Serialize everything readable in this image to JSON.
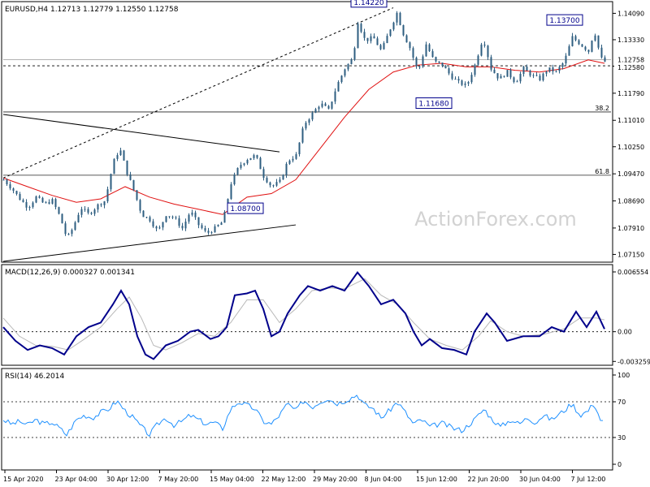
{
  "chart_data": {
    "type": "candlestick",
    "colors": {
      "background": "#ffffff",
      "border": "#000000",
      "candle": "#2e5e80",
      "moving_average": "#e01010",
      "macd_line": "#00008b",
      "macd_signal": "#b8b8b8",
      "rsi_line": "#1e90ff",
      "watermark": "#d2d2d2"
    },
    "watermark": "ActionForex.com",
    "time_labels": [
      "15 Apr 2020",
      "23 Apr 04:00",
      "30 Apr 12:00",
      "7 May 20:00",
      "15 May 04:00",
      "22 May 12:00",
      "29 May 20:00",
      "8 Jun 04:00",
      "15 Jun 12:00",
      "22 Jun 20:00",
      "30 Jun 04:00",
      "7 Jul 12:00"
    ],
    "price_panel": {
      "header": "EURUSD,H4  1.12713 1.12779 1.12550 1.12758",
      "ylim": [
        1.0695,
        1.1438
      ],
      "ticks": [
        "1.14090",
        "1.13330",
        "1.12570",
        "1.11790",
        "1.11010",
        "1.10250",
        "1.09470",
        "1.08690",
        "1.07910",
        "1.07150"
      ],
      "current_price": {
        "label": "1.12758",
        "value": 1.12758
      },
      "dashed_level": {
        "label": "1.12580",
        "value": 1.1258
      },
      "fib_levels": [
        {
          "label": "38.2",
          "value": 1.1125
        },
        {
          "label": "61.8",
          "value": 1.0943
        }
      ],
      "annotations": [
        {
          "label": "1.14220",
          "value": 1.1422
        },
        {
          "label": "1.13700",
          "value": 1.137
        },
        {
          "label": "1.11680",
          "value": 1.1168
        },
        {
          "label": "1.08700",
          "value": 1.087
        }
      ],
      "trendlines": [
        {
          "from": [
            0,
            1.1118
          ],
          "to": [
            340,
            1.101
          ]
        },
        {
          "from": [
            0,
            1.0695
          ],
          "to": [
            360,
            1.08
          ]
        }
      ],
      "dashed_channel": {
        "from": [
          0,
          1.0935
        ],
        "to": [
          480,
          1.1425
        ]
      },
      "series": [
        {
          "x": 0,
          "y": 1.093
        },
        {
          "x": 10,
          "y": 1.0905
        },
        {
          "x": 20,
          "y": 1.0875
        },
        {
          "x": 30,
          "y": 1.085
        },
        {
          "x": 40,
          "y": 1.088
        },
        {
          "x": 50,
          "y": 1.086
        },
        {
          "x": 60,
          "y": 1.087
        },
        {
          "x": 70,
          "y": 1.082
        },
        {
          "x": 78,
          "y": 1.076
        },
        {
          "x": 85,
          "y": 1.079
        },
        {
          "x": 95,
          "y": 1.085
        },
        {
          "x": 105,
          "y": 1.083
        },
        {
          "x": 115,
          "y": 1.0855
        },
        {
          "x": 125,
          "y": 1.087
        },
        {
          "x": 135,
          "y": 1.098
        },
        {
          "x": 143,
          "y": 1.102
        },
        {
          "x": 152,
          "y": 1.095
        },
        {
          "x": 160,
          "y": 1.09
        },
        {
          "x": 170,
          "y": 1.083
        },
        {
          "x": 180,
          "y": 1.0815
        },
        {
          "x": 190,
          "y": 1.078
        },
        {
          "x": 200,
          "y": 1.083
        },
        {
          "x": 210,
          "y": 1.082
        },
        {
          "x": 220,
          "y": 1.079
        },
        {
          "x": 230,
          "y": 1.084
        },
        {
          "x": 240,
          "y": 1.08
        },
        {
          "x": 250,
          "y": 1.0775
        },
        {
          "x": 260,
          "y": 1.079
        },
        {
          "x": 270,
          "y": 1.081
        },
        {
          "x": 280,
          "y": 1.092
        },
        {
          "x": 290,
          "y": 1.097
        },
        {
          "x": 300,
          "y": 1.099
        },
        {
          "x": 310,
          "y": 1.1
        },
        {
          "x": 320,
          "y": 1.094
        },
        {
          "x": 330,
          "y": 1.091
        },
        {
          "x": 340,
          "y": 1.0925
        },
        {
          "x": 350,
          "y": 1.0985
        },
        {
          "x": 360,
          "y": 1.1
        },
        {
          "x": 370,
          "y": 1.109
        },
        {
          "x": 380,
          "y": 1.112
        },
        {
          "x": 390,
          "y": 1.115
        },
        {
          "x": 400,
          "y": 1.113
        },
        {
          "x": 410,
          "y": 1.12
        },
        {
          "x": 420,
          "y": 1.125
        },
        {
          "x": 430,
          "y": 1.128
        },
        {
          "x": 436,
          "y": 1.1385
        },
        {
          "x": 445,
          "y": 1.133
        },
        {
          "x": 455,
          "y": 1.134
        },
        {
          "x": 465,
          "y": 1.13
        },
        {
          "x": 475,
          "y": 1.136
        },
        {
          "x": 484,
          "y": 1.141
        },
        {
          "x": 492,
          "y": 1.135
        },
        {
          "x": 500,
          "y": 1.131
        },
        {
          "x": 510,
          "y": 1.124
        },
        {
          "x": 520,
          "y": 1.132
        },
        {
          "x": 530,
          "y": 1.127
        },
        {
          "x": 540,
          "y": 1.126
        },
        {
          "x": 550,
          "y": 1.123
        },
        {
          "x": 560,
          "y": 1.121
        },
        {
          "x": 570,
          "y": 1.12
        },
        {
          "x": 580,
          "y": 1.126
        },
        {
          "x": 590,
          "y": 1.134
        },
        {
          "x": 600,
          "y": 1.125
        },
        {
          "x": 610,
          "y": 1.122
        },
        {
          "x": 620,
          "y": 1.124
        },
        {
          "x": 630,
          "y": 1.121
        },
        {
          "x": 640,
          "y": 1.125
        },
        {
          "x": 650,
          "y": 1.123
        },
        {
          "x": 660,
          "y": 1.122
        },
        {
          "x": 670,
          "y": 1.125
        },
        {
          "x": 680,
          "y": 1.124
        },
        {
          "x": 690,
          "y": 1.127
        },
        {
          "x": 700,
          "y": 1.134
        },
        {
          "x": 710,
          "y": 1.132
        },
        {
          "x": 720,
          "y": 1.13
        },
        {
          "x": 727,
          "y": 1.136
        },
        {
          "x": 735,
          "y": 1.128
        },
        {
          "x": 740,
          "y": 1.127
        }
      ],
      "ma_series": [
        {
          "x": 0,
          "y": 1.0935
        },
        {
          "x": 30,
          "y": 1.091
        },
        {
          "x": 60,
          "y": 1.0885
        },
        {
          "x": 90,
          "y": 1.0865
        },
        {
          "x": 120,
          "y": 1.0875
        },
        {
          "x": 150,
          "y": 1.091
        },
        {
          "x": 180,
          "y": 1.088
        },
        {
          "x": 210,
          "y": 1.086
        },
        {
          "x": 240,
          "y": 1.0845
        },
        {
          "x": 270,
          "y": 1.083
        },
        {
          "x": 300,
          "y": 1.088
        },
        {
          "x": 330,
          "y": 1.089
        },
        {
          "x": 360,
          "y": 1.093
        },
        {
          "x": 390,
          "y": 1.102
        },
        {
          "x": 420,
          "y": 1.111
        },
        {
          "x": 450,
          "y": 1.119
        },
        {
          "x": 480,
          "y": 1.124
        },
        {
          "x": 510,
          "y": 1.126
        },
        {
          "x": 540,
          "y": 1.1265
        },
        {
          "x": 570,
          "y": 1.1255
        },
        {
          "x": 600,
          "y": 1.1255
        },
        {
          "x": 630,
          "y": 1.1245
        },
        {
          "x": 660,
          "y": 1.124
        },
        {
          "x": 690,
          "y": 1.125
        },
        {
          "x": 720,
          "y": 1.1275
        },
        {
          "x": 740,
          "y": 1.1265
        }
      ]
    },
    "macd_panel": {
      "header": "MACD(12,26,9) 0.000327 0.001341",
      "ylim": [
        -0.0035,
        0.007
      ],
      "ticks": [
        {
          "label": "0.006554",
          "value": 0.006554
        },
        {
          "label": "0.00",
          "value": 0.0
        },
        {
          "label": "-0.003259",
          "value": -0.003259
        }
      ],
      "macd": [
        {
          "x": 0,
          "y": 0.0005
        },
        {
          "x": 15,
          "y": -0.001
        },
        {
          "x": 30,
          "y": -0.002
        },
        {
          "x": 45,
          "y": -0.0015
        },
        {
          "x": 60,
          "y": -0.0018
        },
        {
          "x": 75,
          "y": -0.0025
        },
        {
          "x": 90,
          "y": -0.0005
        },
        {
          "x": 105,
          "y": 0.0005
        },
        {
          "x": 120,
          "y": 0.001
        },
        {
          "x": 135,
          "y": 0.003
        },
        {
          "x": 145,
          "y": 0.0045
        },
        {
          "x": 155,
          "y": 0.003
        },
        {
          "x": 165,
          "y": -0.0005
        },
        {
          "x": 175,
          "y": -0.0025
        },
        {
          "x": 185,
          "y": -0.003
        },
        {
          "x": 200,
          "y": -0.0015
        },
        {
          "x": 215,
          "y": -0.001
        },
        {
          "x": 230,
          "y": 0.0
        },
        {
          "x": 240,
          "y": 0.0002
        },
        {
          "x": 255,
          "y": -0.0008
        },
        {
          "x": 265,
          "y": -0.0005
        },
        {
          "x": 275,
          "y": 0.0005
        },
        {
          "x": 285,
          "y": 0.004
        },
        {
          "x": 300,
          "y": 0.0042
        },
        {
          "x": 310,
          "y": 0.0045
        },
        {
          "x": 320,
          "y": 0.0025
        },
        {
          "x": 330,
          "y": -0.0005
        },
        {
          "x": 340,
          "y": 0.0
        },
        {
          "x": 350,
          "y": 0.002
        },
        {
          "x": 365,
          "y": 0.004
        },
        {
          "x": 375,
          "y": 0.005
        },
        {
          "x": 390,
          "y": 0.0045
        },
        {
          "x": 405,
          "y": 0.005
        },
        {
          "x": 420,
          "y": 0.0045
        },
        {
          "x": 436,
          "y": 0.0065
        },
        {
          "x": 450,
          "y": 0.005
        },
        {
          "x": 465,
          "y": 0.003
        },
        {
          "x": 480,
          "y": 0.0035
        },
        {
          "x": 495,
          "y": 0.002
        },
        {
          "x": 505,
          "y": 0.0
        },
        {
          "x": 515,
          "y": -0.0015
        },
        {
          "x": 525,
          "y": -0.0008
        },
        {
          "x": 540,
          "y": -0.0018
        },
        {
          "x": 555,
          "y": -0.002
        },
        {
          "x": 570,
          "y": -0.0025
        },
        {
          "x": 580,
          "y": 0.0
        },
        {
          "x": 595,
          "y": 0.002
        },
        {
          "x": 605,
          "y": 0.001
        },
        {
          "x": 620,
          "y": -0.001
        },
        {
          "x": 640,
          "y": -0.0005
        },
        {
          "x": 660,
          "y": -0.0005
        },
        {
          "x": 675,
          "y": 0.0005
        },
        {
          "x": 690,
          "y": 0.0
        },
        {
          "x": 705,
          "y": 0.0022
        },
        {
          "x": 718,
          "y": 0.0005
        },
        {
          "x": 730,
          "y": 0.0022
        },
        {
          "x": 740,
          "y": 0.0003
        }
      ],
      "signal": [
        {
          "x": 0,
          "y": 0.0015
        },
        {
          "x": 20,
          "y": -0.0005
        },
        {
          "x": 40,
          "y": -0.0015
        },
        {
          "x": 60,
          "y": -0.0016
        },
        {
          "x": 80,
          "y": -0.002
        },
        {
          "x": 100,
          "y": -0.0008
        },
        {
          "x": 120,
          "y": 0.0005
        },
        {
          "x": 140,
          "y": 0.0025
        },
        {
          "x": 155,
          "y": 0.0038
        },
        {
          "x": 170,
          "y": 0.0015
        },
        {
          "x": 185,
          "y": -0.0015
        },
        {
          "x": 200,
          "y": -0.002
        },
        {
          "x": 220,
          "y": -0.0012
        },
        {
          "x": 240,
          "y": -0.0002
        },
        {
          "x": 260,
          "y": -0.0005
        },
        {
          "x": 280,
          "y": 0.001
        },
        {
          "x": 300,
          "y": 0.0035
        },
        {
          "x": 320,
          "y": 0.0035
        },
        {
          "x": 340,
          "y": 0.001
        },
        {
          "x": 360,
          "y": 0.0025
        },
        {
          "x": 380,
          "y": 0.0045
        },
        {
          "x": 400,
          "y": 0.0048
        },
        {
          "x": 420,
          "y": 0.0047
        },
        {
          "x": 445,
          "y": 0.0058
        },
        {
          "x": 465,
          "y": 0.004
        },
        {
          "x": 485,
          "y": 0.003
        },
        {
          "x": 505,
          "y": 0.001
        },
        {
          "x": 525,
          "y": -0.0008
        },
        {
          "x": 545,
          "y": -0.0015
        },
        {
          "x": 565,
          "y": -0.002
        },
        {
          "x": 585,
          "y": -0.0005
        },
        {
          "x": 600,
          "y": 0.0012
        },
        {
          "x": 620,
          "y": 0.0
        },
        {
          "x": 640,
          "y": -0.0005
        },
        {
          "x": 665,
          "y": -0.0003
        },
        {
          "x": 690,
          "y": 0.0003
        },
        {
          "x": 710,
          "y": 0.0015
        },
        {
          "x": 730,
          "y": 0.0015
        },
        {
          "x": 740,
          "y": 0.0013
        }
      ]
    },
    "rsi_panel": {
      "header": "RSI(14) 46.2014",
      "ylim": [
        0,
        100
      ],
      "ticks": [
        {
          "label": "100",
          "value": 100
        },
        {
          "label": "70",
          "value": 70
        },
        {
          "label": "30",
          "value": 30
        },
        {
          "label": "0",
          "value": 0
        }
      ],
      "levels": [
        70,
        30
      ],
      "series": [
        {
          "x": 0,
          "y": 50
        },
        {
          "x": 10,
          "y": 45
        },
        {
          "x": 20,
          "y": 48
        },
        {
          "x": 30,
          "y": 44
        },
        {
          "x": 40,
          "y": 50
        },
        {
          "x": 50,
          "y": 45
        },
        {
          "x": 60,
          "y": 47
        },
        {
          "x": 70,
          "y": 40
        },
        {
          "x": 78,
          "y": 33
        },
        {
          "x": 90,
          "y": 50
        },
        {
          "x": 100,
          "y": 55
        },
        {
          "x": 110,
          "y": 52
        },
        {
          "x": 120,
          "y": 58
        },
        {
          "x": 130,
          "y": 62
        },
        {
          "x": 140,
          "y": 71
        },
        {
          "x": 150,
          "y": 60
        },
        {
          "x": 160,
          "y": 52
        },
        {
          "x": 170,
          "y": 42
        },
        {
          "x": 180,
          "y": 33
        },
        {
          "x": 190,
          "y": 45
        },
        {
          "x": 200,
          "y": 52
        },
        {
          "x": 210,
          "y": 44
        },
        {
          "x": 220,
          "y": 48
        },
        {
          "x": 230,
          "y": 55
        },
        {
          "x": 240,
          "y": 50
        },
        {
          "x": 250,
          "y": 45
        },
        {
          "x": 260,
          "y": 47
        },
        {
          "x": 270,
          "y": 40
        },
        {
          "x": 280,
          "y": 62
        },
        {
          "x": 290,
          "y": 70
        },
        {
          "x": 300,
          "y": 66
        },
        {
          "x": 310,
          "y": 62
        },
        {
          "x": 320,
          "y": 48
        },
        {
          "x": 330,
          "y": 45
        },
        {
          "x": 340,
          "y": 55
        },
        {
          "x": 350,
          "y": 68
        },
        {
          "x": 360,
          "y": 60
        },
        {
          "x": 370,
          "y": 72
        },
        {
          "x": 380,
          "y": 64
        },
        {
          "x": 390,
          "y": 70
        },
        {
          "x": 400,
          "y": 74
        },
        {
          "x": 410,
          "y": 68
        },
        {
          "x": 420,
          "y": 71
        },
        {
          "x": 436,
          "y": 78
        },
        {
          "x": 445,
          "y": 66
        },
        {
          "x": 455,
          "y": 63
        },
        {
          "x": 465,
          "y": 52
        },
        {
          "x": 475,
          "y": 60
        },
        {
          "x": 485,
          "y": 70
        },
        {
          "x": 495,
          "y": 58
        },
        {
          "x": 505,
          "y": 45
        },
        {
          "x": 515,
          "y": 50
        },
        {
          "x": 525,
          "y": 42
        },
        {
          "x": 540,
          "y": 46
        },
        {
          "x": 555,
          "y": 40
        },
        {
          "x": 565,
          "y": 38
        },
        {
          "x": 580,
          "y": 50
        },
        {
          "x": 592,
          "y": 62
        },
        {
          "x": 600,
          "y": 52
        },
        {
          "x": 612,
          "y": 42
        },
        {
          "x": 625,
          "y": 50
        },
        {
          "x": 635,
          "y": 45
        },
        {
          "x": 645,
          "y": 52
        },
        {
          "x": 655,
          "y": 47
        },
        {
          "x": 665,
          "y": 55
        },
        {
          "x": 675,
          "y": 50
        },
        {
          "x": 690,
          "y": 60
        },
        {
          "x": 700,
          "y": 68
        },
        {
          "x": 710,
          "y": 55
        },
        {
          "x": 720,
          "y": 60
        },
        {
          "x": 727,
          "y": 69
        },
        {
          "x": 735,
          "y": 50
        },
        {
          "x": 740,
          "y": 46
        }
      ]
    }
  }
}
